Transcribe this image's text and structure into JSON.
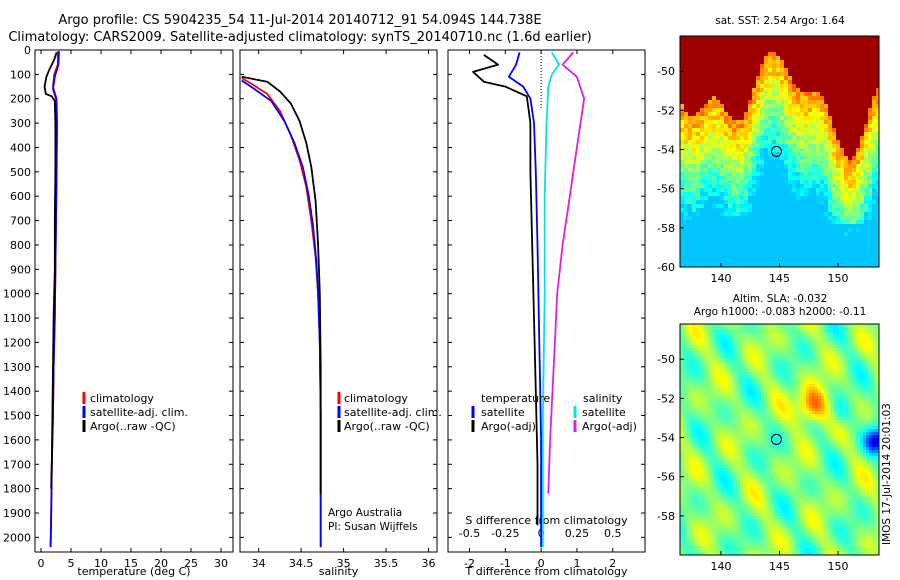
{
  "figure": {
    "title_line1": "Argo profile: CS 5904235_54 11-Jul-2014 20140712_91 54.094S 144.738E",
    "title_line2": "Climatology: CARS2009. Satellite-adjusted climatology: synTS_20140710.nc (1.6d earlier)",
    "watermark": "IMOS 17-Jul-2014 20:01:03",
    "credit_line1": "Argo Australia",
    "credit_line2": "PI: Susan Wijffels"
  },
  "colors": {
    "climatology": "#ff0000",
    "satellite": "#0000ff",
    "argo": "#000000",
    "sat_salinity": "#00e5e5",
    "argo_salinity_diff": "#e020e0"
  },
  "legends": {
    "profile": [
      "climatology",
      "satellite-adj. clim.",
      "Argo(..raw -QC)"
    ],
    "diff_headers": [
      "temperature",
      "salinity"
    ],
    "diff_entries": [
      "satellite",
      "Argo(-adj)"
    ]
  },
  "chart_data": [
    {
      "type": "line",
      "id": "temperature",
      "xlabel": "temperature (deg C)",
      "ylabel": "",
      "xlim": [
        -1,
        32
      ],
      "ylim": [
        2060,
        0
      ],
      "xticks": [
        0,
        5,
        10,
        15,
        20,
        25,
        30
      ],
      "yticks": [
        0,
        100,
        200,
        300,
        400,
        500,
        600,
        700,
        800,
        900,
        1000,
        1100,
        1200,
        1300,
        1400,
        1500,
        1600,
        1700,
        1800,
        1900,
        2000
      ],
      "series": [
        {
          "name": "climatology",
          "color": "#ff0000",
          "points": [
            [
              2.8,
              5
            ],
            [
              2.8,
              60
            ],
            [
              2.2,
              100
            ],
            [
              2.0,
              150
            ],
            [
              2.6,
              200
            ],
            [
              2.7,
              300
            ],
            [
              2.6,
              500
            ],
            [
              2.5,
              700
            ],
            [
              2.4,
              900
            ],
            [
              2.3,
              1100
            ],
            [
              2.1,
              1300
            ],
            [
              2.0,
              1500
            ],
            [
              1.8,
              1700
            ],
            [
              1.7,
              1900
            ],
            [
              1.6,
              2040
            ]
          ]
        },
        {
          "name": "satellite-adj. clim.",
          "color": "#0000ff",
          "points": [
            [
              3.0,
              5
            ],
            [
              2.9,
              60
            ],
            [
              2.3,
              110
            ],
            [
              2.0,
              160
            ],
            [
              2.5,
              200
            ],
            [
              2.6,
              300
            ],
            [
              2.6,
              500
            ],
            [
              2.5,
              700
            ],
            [
              2.4,
              900
            ],
            [
              2.3,
              1100
            ],
            [
              2.1,
              1300
            ],
            [
              2.0,
              1500
            ],
            [
              1.8,
              1700
            ],
            [
              1.7,
              1900
            ],
            [
              1.6,
              2040
            ]
          ]
        },
        {
          "name": "Argo(..raw -QC)",
          "color": "#000000",
          "points": [
            [
              2.6,
              10
            ],
            [
              2.2,
              40
            ],
            [
              1.4,
              80
            ],
            [
              0.9,
              110
            ],
            [
              0.6,
              150
            ],
            [
              0.8,
              180
            ],
            [
              1.8,
              190
            ],
            [
              2.3,
              210
            ],
            [
              2.4,
              300
            ],
            [
              2.4,
              500
            ],
            [
              2.3,
              700
            ],
            [
              2.3,
              900
            ],
            [
              2.1,
              1100
            ],
            [
              2.0,
              1300
            ],
            [
              1.9,
              1500
            ],
            [
              1.8,
              1700
            ],
            [
              1.7,
              1800
            ]
          ]
        }
      ]
    },
    {
      "type": "line",
      "id": "salinity",
      "xlabel": "salinity",
      "ylabel": "",
      "xlim": [
        33.78,
        36.1
      ],
      "ylim": [
        2060,
        0
      ],
      "xticks": [
        34,
        34.5,
        35,
        35.5,
        36
      ],
      "xticklabels": [
        "34",
        "34.5",
        "35",
        "35.5",
        "36"
      ],
      "series": [
        {
          "name": "climatology",
          "color": "#ff0000",
          "points": [
            [
              33.8,
              115
            ],
            [
              33.92,
              140
            ],
            [
              34.1,
              180
            ],
            [
              34.25,
              250
            ],
            [
              34.38,
              350
            ],
            [
              34.48,
              450
            ],
            [
              34.56,
              560
            ],
            [
              34.62,
              700
            ],
            [
              34.67,
              850
            ],
            [
              34.7,
              1000
            ],
            [
              34.72,
              1200
            ],
            [
              34.73,
              1500
            ],
            [
              34.73,
              1800
            ],
            [
              34.73,
              2040
            ]
          ]
        },
        {
          "name": "satellite-adj. clim.",
          "color": "#0000ff",
          "points": [
            [
              33.8,
              125
            ],
            [
              33.95,
              160
            ],
            [
              34.15,
              210
            ],
            [
              34.3,
              290
            ],
            [
              34.42,
              380
            ],
            [
              34.52,
              480
            ],
            [
              34.59,
              600
            ],
            [
              34.64,
              720
            ],
            [
              34.68,
              870
            ],
            [
              34.7,
              1000
            ],
            [
              34.72,
              1200
            ],
            [
              34.73,
              1500
            ],
            [
              34.73,
              1800
            ],
            [
              34.73,
              2040
            ]
          ]
        },
        {
          "name": "Argo(..raw -QC)",
          "color": "#000000",
          "points": [
            [
              33.8,
              110
            ],
            [
              33.95,
              120
            ],
            [
              34.1,
              130
            ],
            [
              34.25,
              170
            ],
            [
              34.38,
              220
            ],
            [
              34.48,
              290
            ],
            [
              34.56,
              380
            ],
            [
              34.62,
              480
            ],
            [
              34.67,
              620
            ],
            [
              34.7,
              800
            ],
            [
              34.72,
              1000
            ],
            [
              34.73,
              1300
            ],
            [
              34.73,
              1600
            ],
            [
              34.73,
              1820
            ]
          ]
        }
      ]
    },
    {
      "type": "line",
      "id": "difference",
      "xlabel": "T difference from climatology",
      "xlabel2": "S difference from climatology",
      "xlim": [
        -2.6,
        2.9
      ],
      "ylim": [
        2060,
        0
      ],
      "xticks": [
        -2,
        -1,
        0,
        1,
        2
      ],
      "xticks2": [
        -0.5,
        -0.25,
        0,
        0.25,
        0.5
      ],
      "xticklabels2": [
        "-0.5",
        "-0.25",
        "0",
        "0.25",
        "0.5"
      ],
      "series": [
        {
          "name": "temperature satellite",
          "color": "#0000ff",
          "points": [
            [
              -0.6,
              10
            ],
            [
              -0.7,
              60
            ],
            [
              -0.9,
              110
            ],
            [
              -0.5,
              150
            ],
            [
              -0.3,
              200
            ],
            [
              -0.2,
              300
            ],
            [
              -0.15,
              500
            ],
            [
              -0.1,
              800
            ],
            [
              -0.05,
              1200
            ],
            [
              0,
              1600
            ],
            [
              0,
              2040
            ]
          ]
        },
        {
          "name": "temperature Argo(-adj)",
          "color": "#000000",
          "points": [
            [
              -1.6,
              20
            ],
            [
              -1.2,
              60
            ],
            [
              -1.9,
              90
            ],
            [
              -1.6,
              130
            ],
            [
              -1.0,
              150
            ],
            [
              -0.4,
              190
            ],
            [
              -0.3,
              300
            ],
            [
              -0.3,
              500
            ],
            [
              -0.25,
              800
            ],
            [
              -0.2,
              1100
            ],
            [
              -0.15,
              1400
            ],
            [
              -0.1,
              1700
            ],
            [
              -0.1,
              1950
            ]
          ]
        },
        {
          "name": "salinity satellite",
          "color": "#00e5e5",
          "points": [
            [
              0.3,
              10
            ],
            [
              0.5,
              60
            ],
            [
              0.3,
              100
            ],
            [
              0.2,
              150
            ],
            [
              0.15,
              300
            ],
            [
              0.1,
              600
            ],
            [
              0.1,
              1000
            ],
            [
              0.05,
              1500
            ],
            [
              0.05,
              2040
            ]
          ]
        },
        {
          "name": "salinity Argo(-adj)",
          "color": "#e020e0",
          "points": [
            [
              0.9,
              10
            ],
            [
              0.6,
              60
            ],
            [
              1.0,
              110
            ],
            [
              1.2,
              200
            ],
            [
              1.0,
              400
            ],
            [
              0.8,
              600
            ],
            [
              0.6,
              800
            ],
            [
              0.45,
              1000
            ],
            [
              0.35,
              1300
            ],
            [
              0.25,
              1600
            ],
            [
              0.2,
              1820
            ]
          ]
        }
      ]
    },
    {
      "type": "heatmap",
      "id": "sst_map",
      "title": "sat. SST: 2.54  Argo: 1.64",
      "xlim": [
        136.5,
        153.5
      ],
      "ylim": [
        -60,
        -48.2
      ],
      "xticks": [
        140,
        145,
        150
      ],
      "yticks": [
        -60,
        -58,
        -56,
        -54,
        -52,
        -50
      ],
      "marker": {
        "lon": 144.738,
        "lat": -54.094
      }
    },
    {
      "type": "heatmap",
      "id": "sla_map",
      "title": "Altim. SLA: -0.032",
      "subtitle": "Argo h1000: -0.083 h2000: -0.11",
      "xlim": [
        136.5,
        153.5
      ],
      "ylim": [
        -60,
        -48.2
      ],
      "xticks": [
        140,
        145,
        150
      ],
      "yticks": [
        -58,
        -56,
        -54,
        -52,
        -50
      ],
      "marker": {
        "lon": 144.738,
        "lat": -54.094
      }
    }
  ]
}
